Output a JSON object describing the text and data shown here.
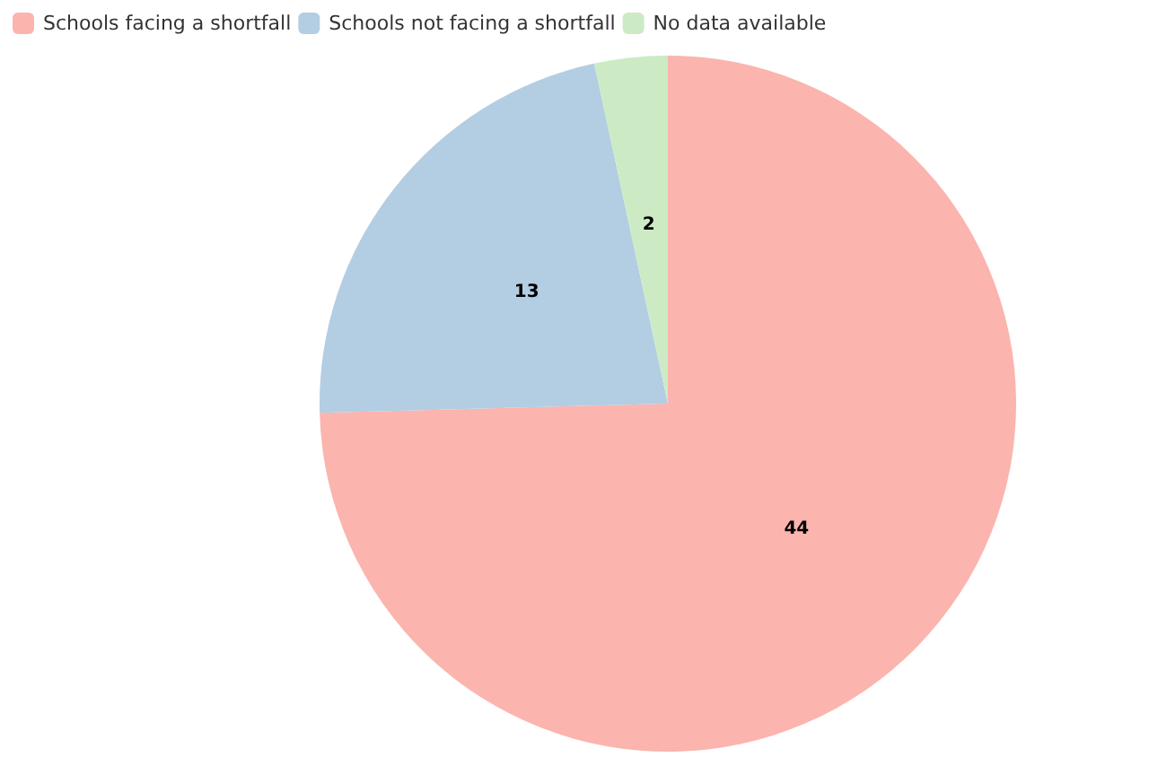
{
  "chart_data": {
    "type": "pie",
    "categories": [
      "Schools facing a shortfall",
      "Schools not facing a shortfall",
      "No data available"
    ],
    "values": [
      44,
      13,
      2
    ],
    "colors": [
      "#fbb4ae",
      "#b3cde3",
      "#ccebc5"
    ],
    "data_labels": true,
    "legend": "top left"
  }
}
